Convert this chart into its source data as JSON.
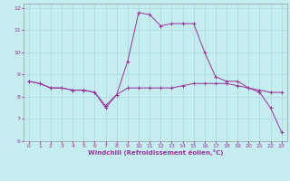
{
  "xlabel": "Windchill (Refroidissement éolien,°C)",
  "ylabel": "",
  "xlim": [
    -0.5,
    23.5
  ],
  "ylim": [
    6,
    12.2
  ],
  "yticks": [
    6,
    7,
    8,
    9,
    10,
    11,
    12
  ],
  "xticks": [
    0,
    1,
    2,
    3,
    4,
    5,
    6,
    7,
    8,
    9,
    10,
    11,
    12,
    13,
    14,
    15,
    16,
    17,
    18,
    19,
    20,
    21,
    22,
    23
  ],
  "background_color": "#c5ecee",
  "grid_color": "#aad8dc",
  "line_color": "#993399",
  "line1_x": [
    0,
    1,
    2,
    3,
    4,
    5,
    6,
    7,
    8,
    9,
    10,
    11,
    12,
    13,
    14,
    15,
    16,
    17,
    18,
    19,
    20,
    21,
    22,
    23
  ],
  "line1_y": [
    8.7,
    8.6,
    8.4,
    8.4,
    8.3,
    8.3,
    8.2,
    7.5,
    8.1,
    8.4,
    8.4,
    8.4,
    8.4,
    8.4,
    8.5,
    8.6,
    8.6,
    8.6,
    8.6,
    8.5,
    8.4,
    8.3,
    8.2,
    8.2
  ],
  "line2_x": [
    0,
    1,
    2,
    3,
    4,
    5,
    6,
    7,
    8,
    9,
    10,
    11,
    12,
    13,
    14,
    15,
    16,
    17,
    18,
    19,
    20,
    21,
    22,
    23
  ],
  "line2_y": [
    8.7,
    8.6,
    8.4,
    8.4,
    8.3,
    8.3,
    8.2,
    7.6,
    8.1,
    9.6,
    11.8,
    11.7,
    11.2,
    11.3,
    11.3,
    11.3,
    10.0,
    8.9,
    8.7,
    8.7,
    8.4,
    8.2,
    7.5,
    6.4
  ],
  "tick_fontsize": 4.5,
  "xlabel_fontsize": 5.0
}
